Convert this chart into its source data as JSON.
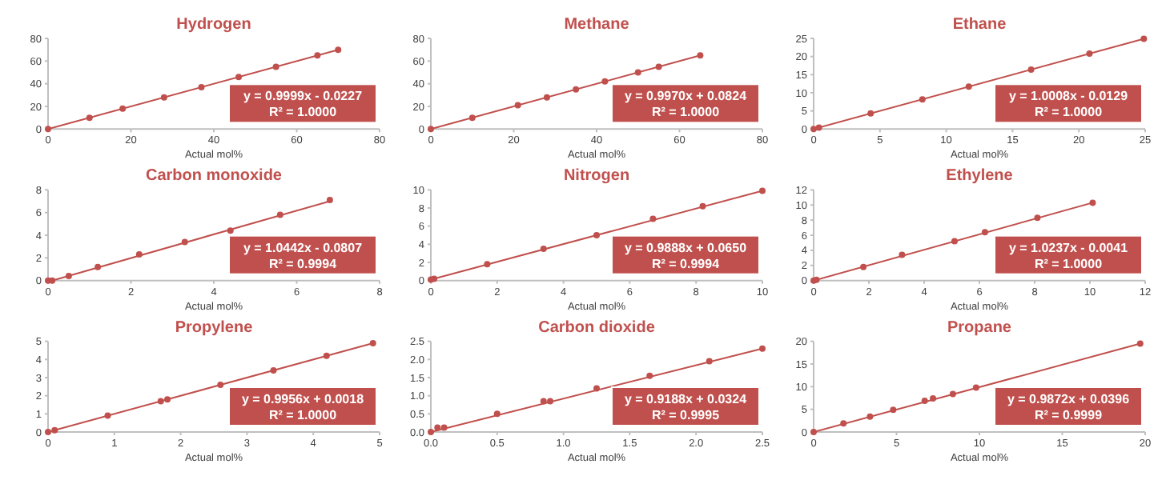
{
  "chart_data": [
    {
      "type": "scatter",
      "title": "Hydrogen",
      "xlabel": "Actual mol%",
      "xlim": [
        0,
        80
      ],
      "xticks": [
        0,
        20,
        40,
        60,
        80
      ],
      "ylim": [
        0,
        80
      ],
      "yticks": [
        0,
        20,
        40,
        60,
        80
      ],
      "marker": "circle",
      "annotations": [
        "y = 0.9999x - 0.0227",
        "R² = 1.0000"
      ],
      "series": [
        {
          "type": "scatter",
          "color": "#c0504d",
          "x": [
            0,
            10,
            18,
            28,
            37,
            46,
            55,
            65,
            70
          ],
          "values": [
            0,
            10,
            18,
            28,
            37,
            46,
            55,
            65,
            70
          ]
        },
        {
          "type": "line",
          "marker": "none",
          "color": "#c0504d",
          "x": [
            0,
            70
          ],
          "values": [
            0,
            70
          ]
        }
      ]
    },
    {
      "type": "scatter",
      "title": "Methane",
      "xlabel": "Actual mol%",
      "xlim": [
        0,
        80
      ],
      "xticks": [
        0,
        20,
        40,
        60,
        80
      ],
      "ylim": [
        0,
        80
      ],
      "yticks": [
        0,
        20,
        40,
        60,
        80
      ],
      "marker": "circle",
      "annotations": [
        "y = 0.9970x + 0.0824",
        "R² = 1.0000"
      ],
      "series": [
        {
          "type": "scatter",
          "color": "#c0504d",
          "x": [
            0,
            10,
            21,
            28,
            35,
            42,
            50,
            55,
            65
          ],
          "values": [
            0,
            10,
            21,
            28,
            35,
            42,
            50,
            55,
            65
          ]
        },
        {
          "type": "line",
          "marker": "none",
          "color": "#c0504d",
          "x": [
            0,
            65
          ],
          "values": [
            0,
            65
          ]
        }
      ]
    },
    {
      "type": "scatter",
      "title": "Ethane",
      "xlabel": "Actual mol%",
      "xlim": [
        0,
        25
      ],
      "xticks": [
        0,
        5,
        10,
        15,
        20,
        25
      ],
      "ylim": [
        0,
        25
      ],
      "yticks": [
        0,
        5,
        10,
        15,
        20,
        25
      ],
      "marker": "circle",
      "annotations": [
        "y = 1.0008x - 0.0129",
        "R² = 1.0000"
      ],
      "series": [
        {
          "type": "scatter",
          "color": "#c0504d",
          "x": [
            0,
            0.4,
            4.3,
            8.2,
            11.7,
            16.4,
            20.8,
            24.9
          ],
          "values": [
            0,
            0.4,
            4.3,
            8.2,
            11.7,
            16.4,
            20.8,
            24.9
          ]
        },
        {
          "type": "line",
          "marker": "none",
          "color": "#c0504d",
          "x": [
            0,
            24.9
          ],
          "values": [
            0,
            24.9
          ]
        }
      ]
    },
    {
      "type": "scatter",
      "title": "Carbon monoxide",
      "xlabel": "Actual mol%",
      "xlim": [
        0,
        8
      ],
      "xticks": [
        0,
        2,
        4,
        6,
        8
      ],
      "ylim": [
        0,
        8
      ],
      "yticks": [
        0,
        2,
        4,
        6,
        8
      ],
      "marker": "circle",
      "annotations": [
        "y = 1.0442x - 0.0807",
        "R² = 0.9994"
      ],
      "series": [
        {
          "type": "scatter",
          "color": "#c0504d",
          "x": [
            0,
            0.1,
            0.5,
            1.2,
            2.2,
            3.3,
            4.4,
            5.6,
            6.8
          ],
          "values": [
            0,
            0,
            0.4,
            1.2,
            2.3,
            3.4,
            4.4,
            5.8,
            7.1
          ]
        },
        {
          "type": "line",
          "marker": "none",
          "color": "#c0504d",
          "x": [
            0.1,
            6.8
          ],
          "values": [
            0,
            7
          ]
        }
      ]
    },
    {
      "type": "scatter",
      "title": "Nitrogen",
      "xlabel": "Actual mol%",
      "xlim": [
        0,
        10
      ],
      "xticks": [
        0,
        2,
        4,
        6,
        8,
        10
      ],
      "ylim": [
        0,
        10
      ],
      "yticks": [
        0,
        2,
        4,
        6,
        8,
        10
      ],
      "marker": "circle",
      "annotations": [
        "y = 0.9888x + 0.0650",
        "R² = 0.9994"
      ],
      "series": [
        {
          "type": "scatter",
          "color": "#c0504d",
          "x": [
            0,
            0.1,
            1.7,
            3.4,
            5,
            6.7,
            8.2,
            10
          ],
          "values": [
            0.1,
            0.2,
            1.8,
            3.5,
            5,
            6.8,
            8.2,
            9.9
          ]
        },
        {
          "type": "line",
          "marker": "none",
          "color": "#c0504d",
          "x": [
            0,
            10
          ],
          "values": [
            0.1,
            9.9
          ]
        }
      ]
    },
    {
      "type": "scatter",
      "title": "Ethylene",
      "xlabel": "Actual mol%",
      "xlim": [
        0,
        12
      ],
      "xticks": [
        0,
        2,
        4,
        6,
        8,
        10,
        12
      ],
      "ylim": [
        0,
        12
      ],
      "yticks": [
        0,
        2,
        4,
        6,
        8,
        10,
        12
      ],
      "marker": "circle",
      "annotations": [
        "y = 1.0237x - 0.0041",
        "R² = 1.0000"
      ],
      "series": [
        {
          "type": "scatter",
          "color": "#c0504d",
          "x": [
            0,
            0.1,
            1.8,
            3.2,
            5.1,
            6.2,
            8.1,
            10.1
          ],
          "values": [
            0,
            0.1,
            1.8,
            3.4,
            5.2,
            6.4,
            8.3,
            10.3
          ]
        },
        {
          "type": "line",
          "marker": "none",
          "color": "#c0504d",
          "x": [
            0,
            10.1
          ],
          "values": [
            0,
            10.3
          ]
        }
      ]
    },
    {
      "type": "scatter",
      "title": "Propylene",
      "xlabel": "Actual mol%",
      "xlim": [
        0,
        5
      ],
      "xticks": [
        0,
        1,
        2,
        3,
        4,
        5
      ],
      "ylim": [
        0,
        5
      ],
      "yticks": [
        0,
        1,
        2,
        3,
        4,
        5
      ],
      "marker": "circle",
      "annotations": [
        "y = 0.9956x + 0.0018",
        "R² = 1.0000"
      ],
      "series": [
        {
          "type": "scatter",
          "color": "#c0504d",
          "x": [
            0,
            0.1,
            0.9,
            1.7,
            1.8,
            2.6,
            3.4,
            4.2,
            4.9
          ],
          "values": [
            0,
            0.1,
            0.9,
            1.7,
            1.8,
            2.6,
            3.4,
            4.2,
            4.9
          ]
        },
        {
          "type": "line",
          "marker": "none",
          "color": "#c0504d",
          "x": [
            0,
            4.9
          ],
          "values": [
            0,
            4.9
          ]
        }
      ]
    },
    {
      "type": "scatter",
      "title": "Carbon dioxide",
      "xlabel": "Actual mol%",
      "xlim": [
        0,
        2.5
      ],
      "xticks": [
        {
          "value": 0,
          "label": "0.0"
        },
        {
          "value": 0.5,
          "label": "0.5"
        },
        {
          "value": 1,
          "label": "1.0"
        },
        {
          "value": 1.5,
          "label": "1.5"
        },
        {
          "value": 2,
          "label": "2.0"
        },
        {
          "value": 2.5,
          "label": "2.5"
        }
      ],
      "ylim": [
        0,
        2.5
      ],
      "yticks": [
        {
          "value": 0,
          "label": "0.0"
        },
        {
          "value": 0.5,
          "label": "0.5"
        },
        {
          "value": 1,
          "label": "1.0"
        },
        {
          "value": 1.5,
          "label": "1.5"
        },
        {
          "value": 2,
          "label": "2.0"
        },
        {
          "value": 2.5,
          "label": "2.5"
        }
      ],
      "marker": "circle",
      "annotations": [
        "y = 0.9188x + 0.0324",
        "R² = 0.9995"
      ],
      "series": [
        {
          "type": "scatter",
          "color": "#c0504d",
          "x": [
            0,
            0.05,
            0.1,
            0.5,
            0.85,
            0.9,
            1.25,
            1.65,
            2.1,
            2.5
          ],
          "values": [
            0,
            0.12,
            0.12,
            0.5,
            0.85,
            0.85,
            1.2,
            1.55,
            1.95,
            2.3
          ]
        },
        {
          "type": "line",
          "marker": "none",
          "color": "#c0504d",
          "x": [
            0,
            2.5
          ],
          "values": [
            0,
            2.3
          ]
        }
      ]
    },
    {
      "type": "scatter",
      "title": "Propane",
      "xlabel": "Actual mol%",
      "xlim": [
        0,
        20
      ],
      "xticks": [
        0,
        5,
        10,
        15,
        20
      ],
      "ylim": [
        0,
        20
      ],
      "yticks": [
        0,
        5,
        10,
        15,
        20
      ],
      "marker": "circle",
      "annotations": [
        "y = 0.9872x + 0.0396",
        "R² = 0.9999"
      ],
      "series": [
        {
          "type": "scatter",
          "color": "#c0504d",
          "x": [
            0,
            1.8,
            3.4,
            4.8,
            6.7,
            7.2,
            8.4,
            9.8,
            19.7
          ],
          "values": [
            0,
            1.9,
            3.4,
            4.9,
            6.9,
            7.4,
            8.4,
            9.8,
            19.5
          ]
        },
        {
          "type": "line",
          "marker": "none",
          "color": "#c0504d",
          "x": [
            0,
            19.7
          ],
          "values": [
            0,
            19.5
          ]
        }
      ]
    }
  ]
}
